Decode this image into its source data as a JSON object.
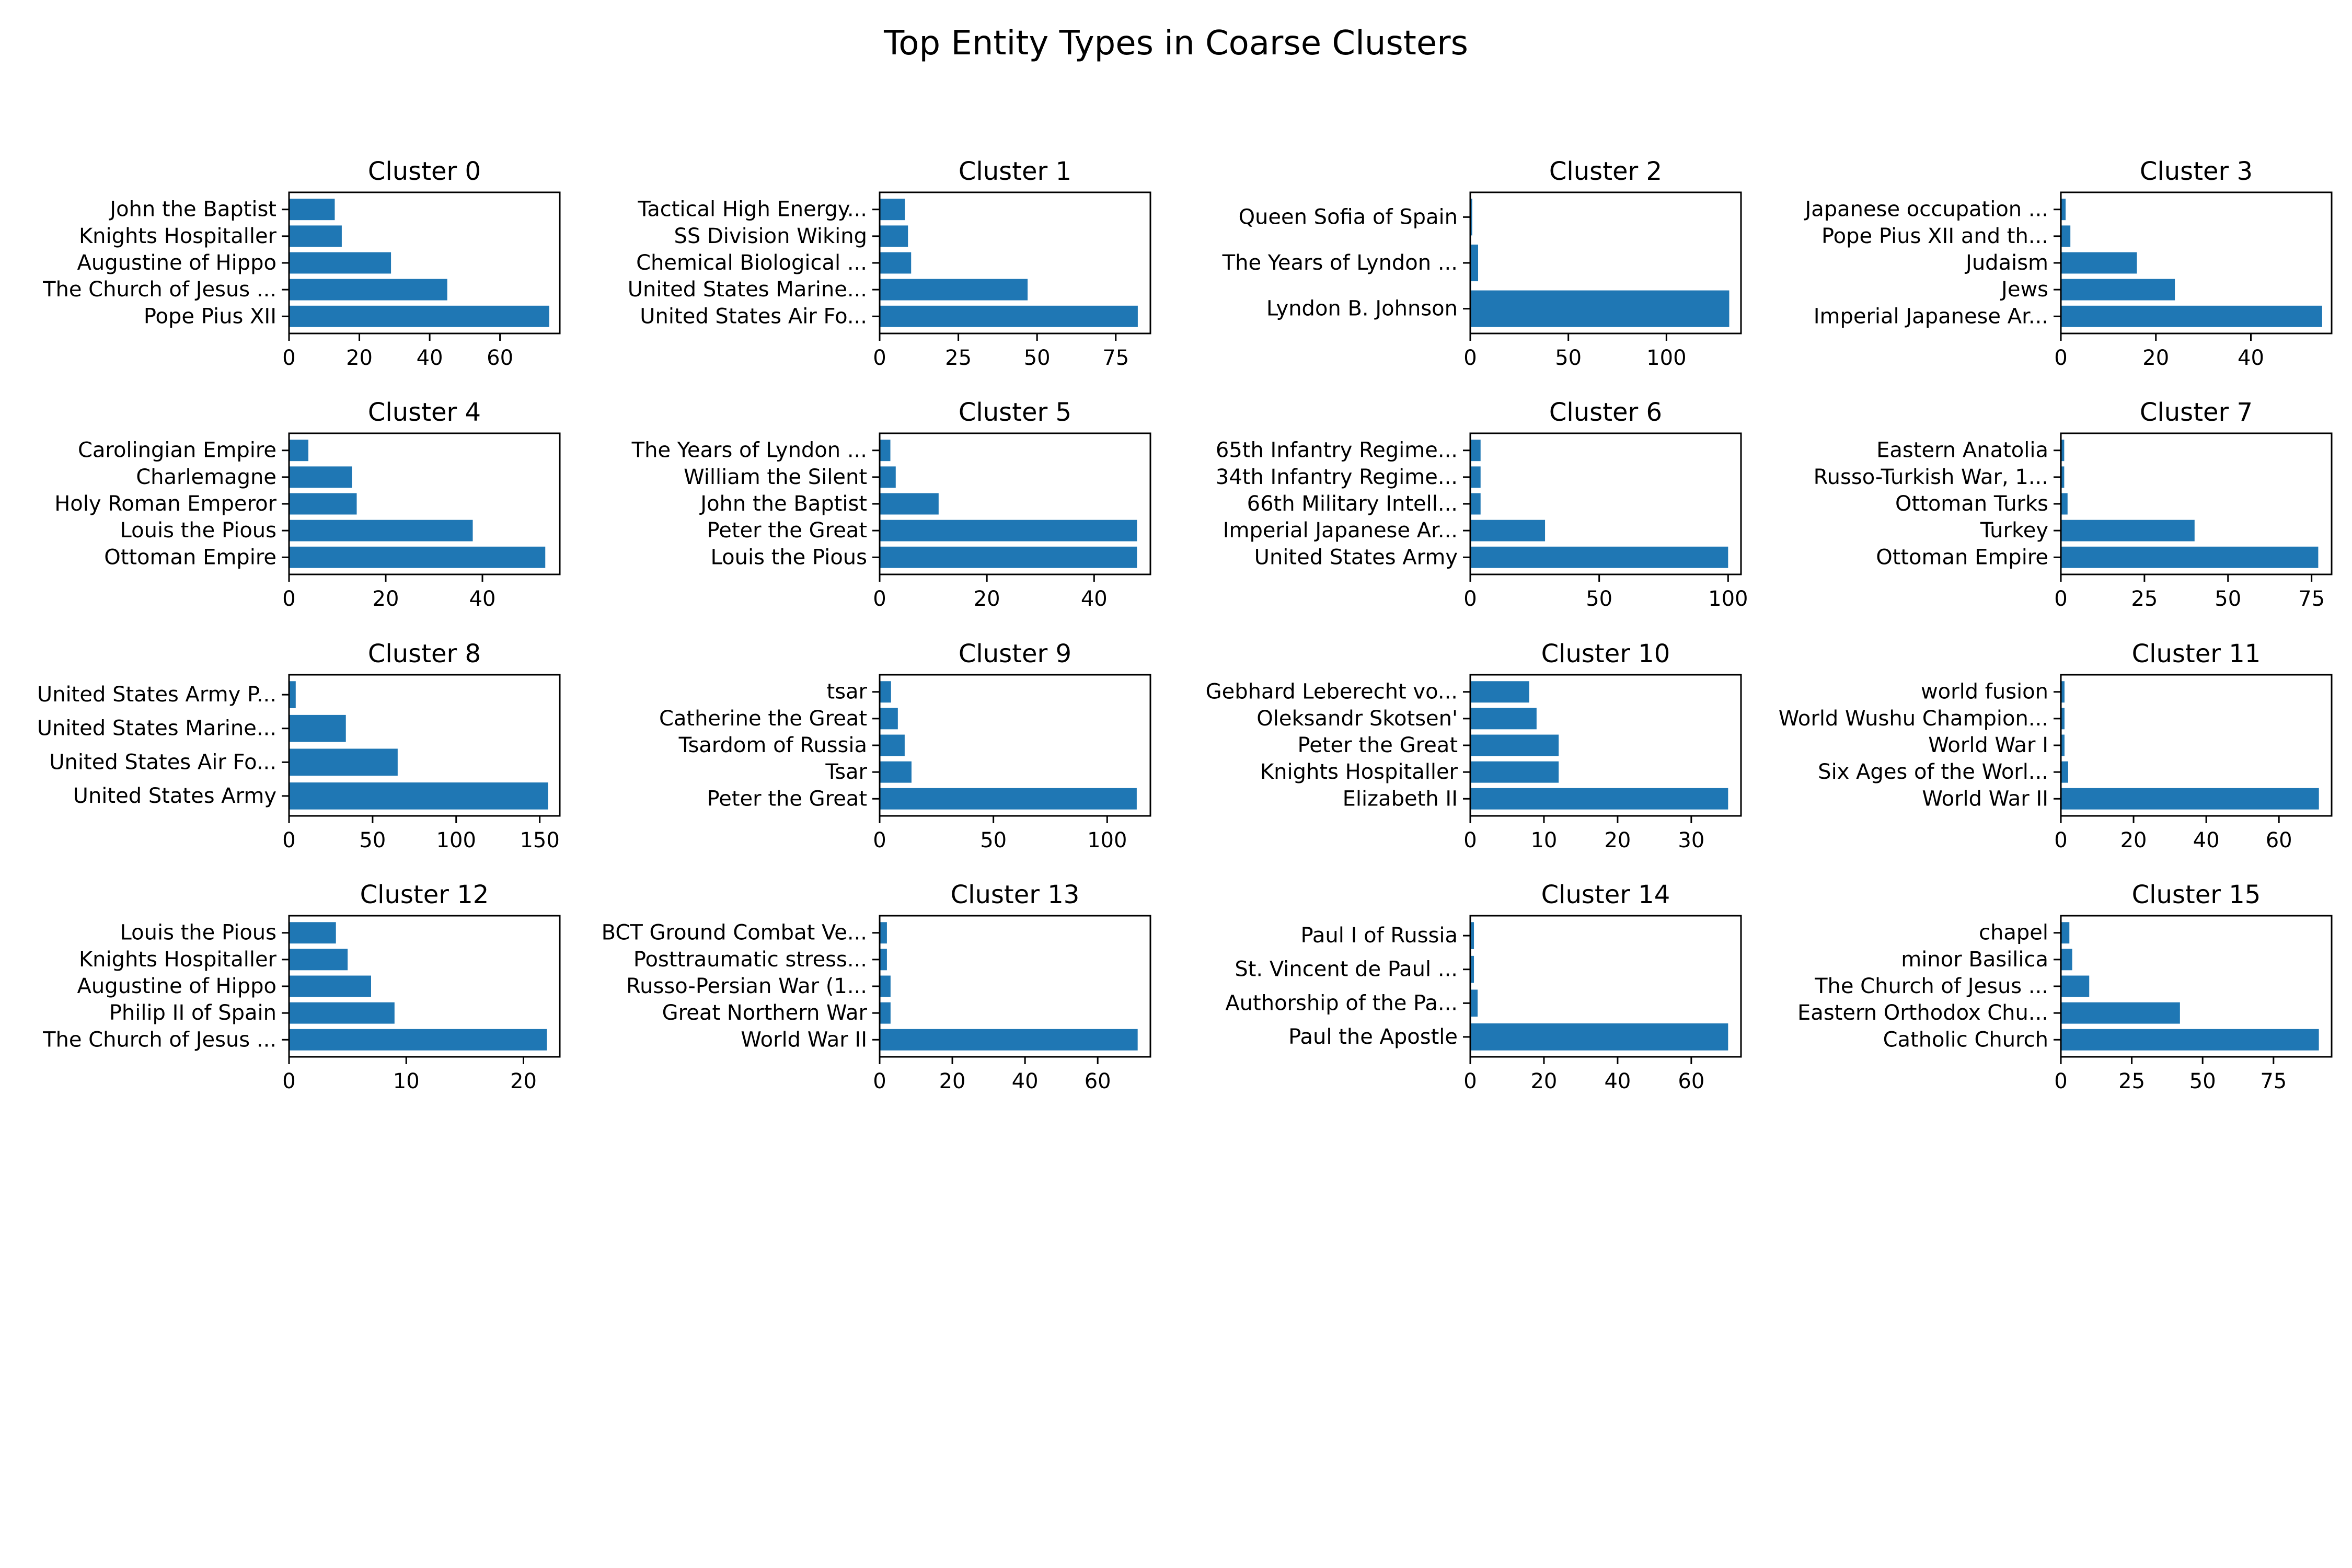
{
  "title": "Top Entity Types in Coarse Clusters",
  "chart_data": [
    {
      "type": "bar",
      "orientation": "horizontal",
      "title": "Cluster 0",
      "categories": [
        "John the Baptist",
        "Knights Hospitaller",
        "Augustine of Hippo",
        "The Church of Jesus ...",
        "Pope Pius XII"
      ],
      "values": [
        13,
        15,
        29,
        45,
        74
      ],
      "xlim": [
        0,
        77
      ],
      "xticks": [
        0,
        20,
        40,
        60
      ]
    },
    {
      "type": "bar",
      "orientation": "horizontal",
      "title": "Cluster 1",
      "categories": [
        "Tactical High Energy...",
        "SS Division Wiking",
        "Chemical Biological ...",
        "United States Marine...",
        "United States Air Fo..."
      ],
      "values": [
        8,
        9,
        10,
        47,
        82
      ],
      "xlim": [
        0,
        86
      ],
      "xticks": [
        0,
        25,
        50,
        75
      ]
    },
    {
      "type": "bar",
      "orientation": "horizontal",
      "title": "Cluster 2",
      "categories": [
        "Queen Sofia of Spain",
        "The Years of Lyndon ...",
        "Lyndon B. Johnson"
      ],
      "values": [
        1,
        4,
        132
      ],
      "xlim": [
        0,
        138
      ],
      "xticks": [
        0,
        50,
        100
      ]
    },
    {
      "type": "bar",
      "orientation": "horizontal",
      "title": "Cluster 3",
      "categories": [
        "Japanese occupation ...",
        "Pope Pius XII and th...",
        "Judaism",
        "Jews",
        "Imperial Japanese Ar..."
      ],
      "values": [
        1,
        2,
        16,
        24,
        55
      ],
      "xlim": [
        0,
        57
      ],
      "xticks": [
        0,
        20,
        40
      ]
    },
    {
      "type": "bar",
      "orientation": "horizontal",
      "title": "Cluster 4",
      "categories": [
        "Carolingian Empire",
        "Charlemagne",
        "Holy Roman Emperor",
        "Louis the Pious",
        "Ottoman Empire"
      ],
      "values": [
        4,
        13,
        14,
        38,
        53
      ],
      "xlim": [
        0,
        56
      ],
      "xticks": [
        0,
        20,
        40
      ]
    },
    {
      "type": "bar",
      "orientation": "horizontal",
      "title": "Cluster 5",
      "categories": [
        "The Years of Lyndon ...",
        "William the Silent",
        "John the Baptist",
        "Peter the Great",
        "Louis the Pious"
      ],
      "values": [
        2,
        3,
        11,
        48,
        48
      ],
      "xlim": [
        0,
        50.5
      ],
      "xticks": [
        0,
        20,
        40
      ]
    },
    {
      "type": "bar",
      "orientation": "horizontal",
      "title": "Cluster 6",
      "categories": [
        "65th Infantry Regime...",
        "34th Infantry Regime...",
        "66th Military Intell...",
        "Imperial Japanese Ar...",
        "United States Army"
      ],
      "values": [
        4,
        4,
        4,
        29,
        100
      ],
      "xlim": [
        0,
        105
      ],
      "xticks": [
        0,
        50,
        100
      ]
    },
    {
      "type": "bar",
      "orientation": "horizontal",
      "title": "Cluster 7",
      "categories": [
        "Eastern Anatolia",
        "Russo-Turkish War, 1...",
        "Ottoman Turks",
        "Turkey",
        "Ottoman Empire"
      ],
      "values": [
        1,
        1,
        2,
        40,
        77
      ],
      "xlim": [
        0,
        81
      ],
      "xticks": [
        0,
        25,
        50,
        75
      ]
    },
    {
      "type": "bar",
      "orientation": "horizontal",
      "title": "Cluster 8",
      "categories": [
        "United States Army P...",
        "United States Marine...",
        "United States Air Fo...",
        "United States Army"
      ],
      "values": [
        4,
        34,
        65,
        155
      ],
      "xlim": [
        0,
        162
      ],
      "xticks": [
        0,
        50,
        100,
        150
      ]
    },
    {
      "type": "bar",
      "orientation": "horizontal",
      "title": "Cluster 9",
      "categories": [
        "tsar",
        "Catherine the Great",
        "Tsardom of Russia",
        "Tsar",
        "Peter the Great"
      ],
      "values": [
        5,
        8,
        11,
        14,
        113
      ],
      "xlim": [
        0,
        119
      ],
      "xticks": [
        0,
        50,
        100
      ]
    },
    {
      "type": "bar",
      "orientation": "horizontal",
      "title": "Cluster 10",
      "categories": [
        "Gebhard Leberecht vo...",
        "Oleksandr Skotsen'",
        "Peter the Great",
        "Knights Hospitaller",
        "Elizabeth II"
      ],
      "values": [
        8,
        9,
        12,
        12,
        35
      ],
      "xlim": [
        0,
        36.75
      ],
      "xticks": [
        0,
        10,
        20,
        30
      ]
    },
    {
      "type": "bar",
      "orientation": "horizontal",
      "title": "Cluster 11",
      "categories": [
        "world fusion",
        "World Wushu Champion...",
        "World War I",
        "Six Ages of the Worl...",
        "World War II"
      ],
      "values": [
        1,
        1,
        1,
        2,
        71
      ],
      "xlim": [
        0,
        74.5
      ],
      "xticks": [
        0,
        20,
        40,
        60
      ]
    },
    {
      "type": "bar",
      "orientation": "horizontal",
      "title": "Cluster 12",
      "categories": [
        "Louis the Pious",
        "Knights Hospitaller",
        "Augustine of Hippo",
        "Philip II of Spain",
        "The Church of Jesus ..."
      ],
      "values": [
        4,
        5,
        7,
        9,
        22
      ],
      "xlim": [
        0,
        23.1
      ],
      "xticks": [
        0,
        10,
        20
      ]
    },
    {
      "type": "bar",
      "orientation": "horizontal",
      "title": "Cluster 13",
      "categories": [
        "BCT Ground Combat Ve...",
        "Posttraumatic stress...",
        "Russo-Persian War (1...",
        "Great Northern War",
        "World War II"
      ],
      "values": [
        2,
        2,
        3,
        3,
        71
      ],
      "xlim": [
        0,
        74.5
      ],
      "xticks": [
        0,
        20,
        40,
        60
      ]
    },
    {
      "type": "bar",
      "orientation": "horizontal",
      "title": "Cluster 14",
      "categories": [
        "Paul I of Russia",
        "St. Vincent de Paul ...",
        "Authorship of the Pa...",
        "Paul the Apostle"
      ],
      "values": [
        1,
        1,
        2,
        70
      ],
      "xlim": [
        0,
        73.5
      ],
      "xticks": [
        0,
        20,
        40,
        60
      ]
    },
    {
      "type": "bar",
      "orientation": "horizontal",
      "title": "Cluster 15",
      "categories": [
        "chapel",
        "minor Basilica",
        "The Church of Jesus ...",
        "Eastern Orthodox Chu...",
        "Catholic Church"
      ],
      "values": [
        3,
        4,
        10,
        42,
        91
      ],
      "xlim": [
        0,
        95.5
      ],
      "xticks": [
        0,
        25,
        50,
        75
      ]
    }
  ],
  "colors": {
    "bar": "#1f77b4",
    "axis": "#000000",
    "background": "#ffffff"
  }
}
